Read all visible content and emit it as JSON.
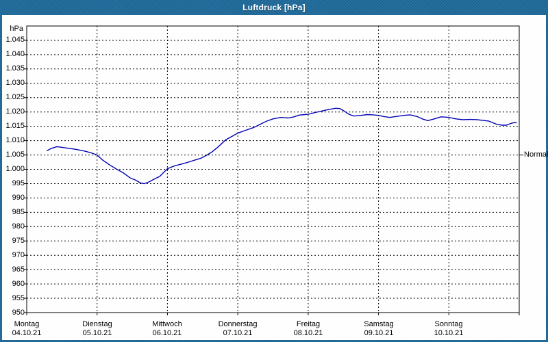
{
  "window": {
    "title": "Luftdruck [hPa]"
  },
  "colors": {
    "titlebar": "#1e6b9c",
    "frame": "#1e6b9c",
    "panel": "#fefefe",
    "grid": "#000000",
    "text": "#000000",
    "title_text": "#ffffff",
    "line": "#0000b3"
  },
  "chart_data": {
    "type": "line",
    "title": "Luftdruck [hPa]",
    "grid": "dashed",
    "legend_position": "none",
    "y_axis": {
      "unit": "hPa",
      "min": 950,
      "max": 1050,
      "grid_step": 5,
      "ticks": [
        {
          "label": "1.045",
          "value": 1045
        },
        {
          "label": "1.040",
          "value": 1040
        },
        {
          "label": "1.035",
          "value": 1035
        },
        {
          "label": "1.030",
          "value": 1030
        },
        {
          "label": "1.025",
          "value": 1025
        },
        {
          "label": "1.020",
          "value": 1020
        },
        {
          "label": "1.015",
          "value": 1015
        },
        {
          "label": "1.010",
          "value": 1010
        },
        {
          "label": "1.005",
          "value": 1005
        },
        {
          "label": "1.000",
          "value": 1000
        },
        {
          "label": "995",
          "value": 995
        },
        {
          "label": "990",
          "value": 990
        },
        {
          "label": "985",
          "value": 985
        },
        {
          "label": "980",
          "value": 980
        },
        {
          "label": "975",
          "value": 975
        },
        {
          "label": "970",
          "value": 970
        },
        {
          "label": "965",
          "value": 965
        },
        {
          "label": "960",
          "value": 960
        },
        {
          "label": "955",
          "value": 955
        },
        {
          "label": "950",
          "value": 950
        }
      ]
    },
    "x_axis": {
      "range_days": 7,
      "days": [
        {
          "name": "Montag",
          "date": "04.10.21"
        },
        {
          "name": "Dienstag",
          "date": "05.10.21"
        },
        {
          "name": "Mittwoch",
          "date": "06.10.21"
        },
        {
          "name": "Donnerstag",
          "date": "07.10.21"
        },
        {
          "name": "Freitag",
          "date": "08.10.21"
        },
        {
          "name": "Samstag",
          "date": "09.10.21"
        },
        {
          "name": "Sonntag",
          "date": "10.10.21"
        }
      ]
    },
    "annotations": [
      {
        "label": "Normal",
        "value": 1005,
        "side": "right"
      }
    ],
    "series": [
      {
        "name": "Luftdruck",
        "color": "#0000b3",
        "points": [
          [
            0.29,
            1006.5
          ],
          [
            0.35,
            1007.3
          ],
          [
            0.43,
            1007.9
          ],
          [
            0.52,
            1007.6
          ],
          [
            0.6,
            1007.3
          ],
          [
            0.69,
            1007.0
          ],
          [
            0.83,
            1006.3
          ],
          [
            0.92,
            1005.7
          ],
          [
            1.0,
            1005.0
          ],
          [
            1.08,
            1003.2
          ],
          [
            1.18,
            1001.5
          ],
          [
            1.28,
            1000.0
          ],
          [
            1.37,
            998.8
          ],
          [
            1.47,
            997.0
          ],
          [
            1.54,
            996.3
          ],
          [
            1.62,
            995.2
          ],
          [
            1.67,
            995.0
          ],
          [
            1.74,
            995.6
          ],
          [
            1.83,
            996.8
          ],
          [
            1.89,
            997.5
          ],
          [
            1.95,
            999.0
          ],
          [
            2.0,
            1000.2
          ],
          [
            2.1,
            1001.2
          ],
          [
            2.18,
            1001.7
          ],
          [
            2.3,
            1002.5
          ],
          [
            2.4,
            1003.3
          ],
          [
            2.47,
            1003.8
          ],
          [
            2.55,
            1004.8
          ],
          [
            2.63,
            1006.0
          ],
          [
            2.72,
            1007.8
          ],
          [
            2.83,
            1010.3
          ],
          [
            2.92,
            1011.5
          ],
          [
            3.0,
            1012.6
          ],
          [
            3.1,
            1013.5
          ],
          [
            3.22,
            1014.5
          ],
          [
            3.31,
            1015.6
          ],
          [
            3.41,
            1016.8
          ],
          [
            3.5,
            1017.6
          ],
          [
            3.61,
            1018.1
          ],
          [
            3.66,
            1018.0
          ],
          [
            3.72,
            1017.9
          ],
          [
            3.8,
            1018.3
          ],
          [
            3.87,
            1018.9
          ],
          [
            3.95,
            1019.1
          ],
          [
            4.0,
            1019.2
          ],
          [
            4.1,
            1019.8
          ],
          [
            4.19,
            1020.3
          ],
          [
            4.28,
            1020.8
          ],
          [
            4.39,
            1021.3
          ],
          [
            4.45,
            1021.2
          ],
          [
            4.5,
            1020.5
          ],
          [
            4.58,
            1019.2
          ],
          [
            4.65,
            1018.6
          ],
          [
            4.72,
            1018.7
          ],
          [
            4.78,
            1018.9
          ],
          [
            4.84,
            1019.1
          ],
          [
            4.92,
            1019.0
          ],
          [
            5.0,
            1018.8
          ],
          [
            5.08,
            1018.4
          ],
          [
            5.16,
            1018.1
          ],
          [
            5.24,
            1018.4
          ],
          [
            5.36,
            1018.8
          ],
          [
            5.45,
            1019.0
          ],
          [
            5.55,
            1018.4
          ],
          [
            5.62,
            1017.6
          ],
          [
            5.7,
            1017.0
          ],
          [
            5.78,
            1017.5
          ],
          [
            5.89,
            1018.3
          ],
          [
            5.95,
            1018.2
          ],
          [
            6.0,
            1018.1
          ],
          [
            6.1,
            1017.6
          ],
          [
            6.2,
            1017.3
          ],
          [
            6.3,
            1017.4
          ],
          [
            6.4,
            1017.3
          ],
          [
            6.48,
            1017.1
          ],
          [
            6.57,
            1016.8
          ],
          [
            6.63,
            1016.2
          ],
          [
            6.69,
            1015.6
          ],
          [
            6.76,
            1015.4
          ],
          [
            6.82,
            1015.4
          ],
          [
            6.88,
            1016.0
          ],
          [
            6.93,
            1016.3
          ],
          [
            6.96,
            1016.2
          ]
        ]
      }
    ]
  }
}
